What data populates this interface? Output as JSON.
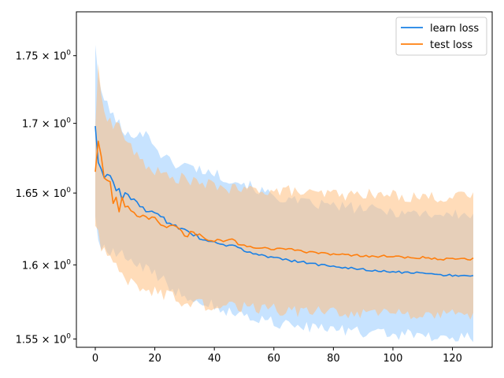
{
  "chart_data": {
    "type": "line",
    "title": "",
    "xlabel": "",
    "ylabel": "",
    "yscale": "log",
    "xlim": [
      -6.35,
      133.35
    ],
    "ylim": [
      1.5445,
      1.7832
    ],
    "grid": false,
    "legend": "top-right",
    "xticks": [
      0,
      20,
      40,
      60,
      80,
      100,
      120
    ],
    "xtick_labels": [
      "0",
      "20",
      "40",
      "60",
      "80",
      "100",
      "120"
    ],
    "yticks": [
      1.55,
      1.6,
      1.65,
      1.7,
      1.75
    ],
    "ytick_labels": [
      {
        "base": "1.55",
        "sep": " × ",
        "pow": "10",
        "exp": "0"
      },
      {
        "base": "1.6",
        "sep": " × ",
        "pow": "10",
        "exp": "0"
      },
      {
        "base": "1.65",
        "sep": " × ",
        "pow": "10",
        "exp": "0"
      },
      {
        "base": "1.7",
        "sep": " × ",
        "pow": "10",
        "exp": "0"
      },
      {
        "base": "1.75",
        "sep": " × ",
        "pow": "10",
        "exp": "0"
      }
    ],
    "x_range": [
      0,
      127
    ],
    "series": [
      {
        "name": "learn loss",
        "color": "#1a80e5",
        "band_color": "#99ccff",
        "mean_anchors": [
          [
            0,
            1.698
          ],
          [
            1,
            1.672
          ],
          [
            2,
            1.666
          ],
          [
            3,
            1.66
          ],
          [
            4,
            1.663
          ],
          [
            5,
            1.663
          ],
          [
            6,
            1.659
          ],
          [
            7,
            1.652
          ],
          [
            8,
            1.654
          ],
          [
            9,
            1.646
          ],
          [
            10,
            1.65
          ],
          [
            12,
            1.646
          ],
          [
            14,
            1.644
          ],
          [
            16,
            1.639
          ],
          [
            18,
            1.637
          ],
          [
            20,
            1.637
          ],
          [
            22,
            1.634
          ],
          [
            24,
            1.63
          ],
          [
            26,
            1.627
          ],
          [
            28,
            1.626
          ],
          [
            30,
            1.624
          ],
          [
            32,
            1.622
          ],
          [
            34,
            1.62
          ],
          [
            36,
            1.618
          ],
          [
            38,
            1.617
          ],
          [
            40,
            1.617
          ],
          [
            42,
            1.615
          ],
          [
            44,
            1.614
          ],
          [
            46,
            1.613
          ],
          [
            48,
            1.611
          ],
          [
            50,
            1.61
          ],
          [
            55,
            1.607
          ],
          [
            60,
            1.605
          ],
          [
            65,
            1.603
          ],
          [
            70,
            1.602
          ],
          [
            75,
            1.6
          ],
          [
            80,
            1.599
          ],
          [
            85,
            1.598
          ],
          [
            90,
            1.597
          ],
          [
            95,
            1.596
          ],
          [
            100,
            1.595
          ],
          [
            105,
            1.595
          ],
          [
            110,
            1.594
          ],
          [
            115,
            1.593
          ],
          [
            120,
            1.593
          ],
          [
            125,
            1.592
          ],
          [
            127,
            1.592
          ]
        ],
        "upper_anchors": [
          [
            0,
            1.76
          ],
          [
            1,
            1.735
          ],
          [
            2,
            1.72
          ],
          [
            4,
            1.715
          ],
          [
            6,
            1.705
          ],
          [
            8,
            1.7
          ],
          [
            10,
            1.69
          ],
          [
            14,
            1.694
          ],
          [
            18,
            1.691
          ],
          [
            22,
            1.678
          ],
          [
            26,
            1.671
          ],
          [
            30,
            1.67
          ],
          [
            35,
            1.667
          ],
          [
            40,
            1.664
          ],
          [
            45,
            1.66
          ],
          [
            50,
            1.657
          ],
          [
            55,
            1.652
          ],
          [
            60,
            1.648
          ],
          [
            65,
            1.645
          ],
          [
            70,
            1.643
          ],
          [
            75,
            1.642
          ],
          [
            80,
            1.641
          ],
          [
            85,
            1.64
          ],
          [
            90,
            1.639
          ],
          [
            95,
            1.638
          ],
          [
            100,
            1.637
          ],
          [
            105,
            1.636
          ],
          [
            110,
            1.636
          ],
          [
            115,
            1.635
          ],
          [
            120,
            1.635
          ],
          [
            127,
            1.634
          ]
        ],
        "lower_anchors": [
          [
            0,
            1.635
          ],
          [
            1,
            1.615
          ],
          [
            2,
            1.612
          ],
          [
            4,
            1.61
          ],
          [
            6,
            1.608
          ],
          [
            8,
            1.607
          ],
          [
            10,
            1.606
          ],
          [
            14,
            1.601
          ],
          [
            18,
            1.596
          ],
          [
            22,
            1.591
          ],
          [
            26,
            1.583
          ],
          [
            30,
            1.58
          ],
          [
            35,
            1.576
          ],
          [
            40,
            1.572
          ],
          [
            45,
            1.568
          ],
          [
            50,
            1.566
          ],
          [
            55,
            1.563
          ],
          [
            60,
            1.561
          ],
          [
            65,
            1.56
          ],
          [
            70,
            1.558
          ],
          [
            75,
            1.557
          ],
          [
            80,
            1.556
          ],
          [
            85,
            1.555
          ],
          [
            90,
            1.554
          ],
          [
            95,
            1.554
          ],
          [
            100,
            1.553
          ],
          [
            105,
            1.553
          ],
          [
            110,
            1.552
          ],
          [
            115,
            1.552
          ],
          [
            120,
            1.551
          ],
          [
            127,
            1.551
          ]
        ]
      },
      {
        "name": "test loss",
        "color": "#ff7f0e",
        "band_color": "#ffbf80",
        "mean_anchors": [
          [
            0,
            1.665
          ],
          [
            1,
            1.688
          ],
          [
            2,
            1.675
          ],
          [
            3,
            1.661
          ],
          [
            4,
            1.658
          ],
          [
            5,
            1.657
          ],
          [
            6,
            1.642
          ],
          [
            7,
            1.646
          ],
          [
            8,
            1.638
          ],
          [
            9,
            1.647
          ],
          [
            10,
            1.641
          ],
          [
            12,
            1.638
          ],
          [
            14,
            1.633
          ],
          [
            16,
            1.635
          ],
          [
            18,
            1.631
          ],
          [
            20,
            1.633
          ],
          [
            22,
            1.627
          ],
          [
            24,
            1.625
          ],
          [
            26,
            1.628
          ],
          [
            28,
            1.626
          ],
          [
            30,
            1.619
          ],
          [
            32,
            1.622
          ],
          [
            34,
            1.621
          ],
          [
            36,
            1.62
          ],
          [
            38,
            1.618
          ],
          [
            40,
            1.617
          ],
          [
            42,
            1.618
          ],
          [
            44,
            1.616
          ],
          [
            46,
            1.619
          ],
          [
            48,
            1.615
          ],
          [
            50,
            1.613
          ],
          [
            55,
            1.612
          ],
          [
            60,
            1.611
          ],
          [
            65,
            1.611
          ],
          [
            70,
            1.609
          ],
          [
            75,
            1.608
          ],
          [
            80,
            1.607
          ],
          [
            85,
            1.607
          ],
          [
            90,
            1.606
          ],
          [
            95,
            1.606
          ],
          [
            100,
            1.606
          ],
          [
            105,
            1.605
          ],
          [
            110,
            1.605
          ],
          [
            115,
            1.604
          ],
          [
            120,
            1.604
          ],
          [
            125,
            1.604
          ],
          [
            127,
            1.604
          ]
        ],
        "upper_anchors": [
          [
            0,
            1.698
          ],
          [
            1,
            1.74
          ],
          [
            2,
            1.72
          ],
          [
            4,
            1.705
          ],
          [
            6,
            1.698
          ],
          [
            8,
            1.7
          ],
          [
            10,
            1.689
          ],
          [
            14,
            1.676
          ],
          [
            18,
            1.668
          ],
          [
            22,
            1.664
          ],
          [
            26,
            1.66
          ],
          [
            30,
            1.661
          ],
          [
            35,
            1.656
          ],
          [
            40,
            1.656
          ],
          [
            45,
            1.653
          ],
          [
            50,
            1.652
          ],
          [
            55,
            1.653
          ],
          [
            60,
            1.651
          ],
          [
            65,
            1.652
          ],
          [
            70,
            1.65
          ],
          [
            75,
            1.649
          ],
          [
            80,
            1.65
          ],
          [
            85,
            1.648
          ],
          [
            90,
            1.65
          ],
          [
            95,
            1.648
          ],
          [
            100,
            1.649
          ],
          [
            105,
            1.647
          ],
          [
            110,
            1.648
          ],
          [
            115,
            1.647
          ],
          [
            120,
            1.647
          ],
          [
            127,
            1.648
          ]
        ],
        "lower_anchors": [
          [
            0,
            1.628
          ],
          [
            1,
            1.625
          ],
          [
            2,
            1.612
          ],
          [
            4,
            1.605
          ],
          [
            6,
            1.602
          ],
          [
            8,
            1.596
          ],
          [
            10,
            1.591
          ],
          [
            14,
            1.584
          ],
          [
            18,
            1.583
          ],
          [
            22,
            1.58
          ],
          [
            26,
            1.578
          ],
          [
            30,
            1.574
          ],
          [
            35,
            1.573
          ],
          [
            40,
            1.571
          ],
          [
            45,
            1.572
          ],
          [
            50,
            1.571
          ],
          [
            55,
            1.57
          ],
          [
            60,
            1.57
          ],
          [
            65,
            1.569
          ],
          [
            70,
            1.568
          ],
          [
            75,
            1.569
          ],
          [
            80,
            1.568
          ],
          [
            85,
            1.567
          ],
          [
            90,
            1.568
          ],
          [
            95,
            1.567
          ],
          [
            100,
            1.567
          ],
          [
            105,
            1.566
          ],
          [
            110,
            1.566
          ],
          [
            115,
            1.566
          ],
          [
            120,
            1.566
          ],
          [
            127,
            1.566
          ]
        ]
      }
    ]
  }
}
